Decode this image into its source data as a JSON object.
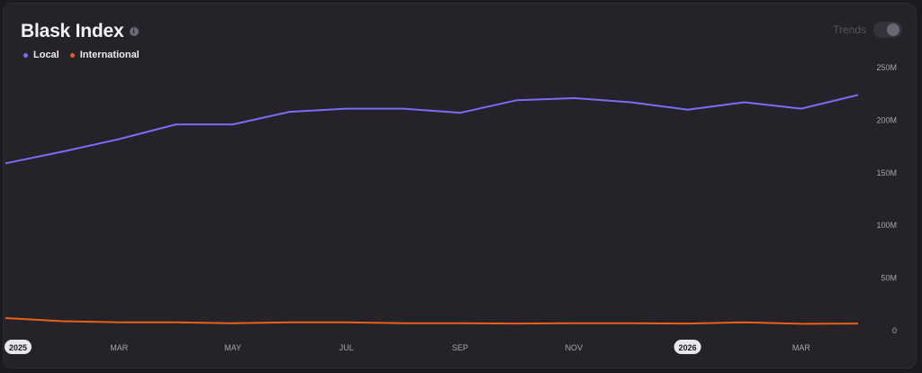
{
  "header": {
    "title": "Blask Index",
    "info_icon": "info-icon",
    "trends_label": "Trends",
    "trends_toggle_on": false
  },
  "legend": [
    {
      "label": "Local",
      "color": "#7b6cf6"
    },
    {
      "label": "International",
      "color": "#e8601a"
    }
  ],
  "chart_data": {
    "type": "line",
    "title": "Blask Index",
    "x": [
      "2025-01",
      "2025-02",
      "2025-03",
      "2025-04",
      "2025-05",
      "2025-06",
      "2025-07",
      "2025-08",
      "2025-09",
      "2025-10",
      "2025-11",
      "2025-12",
      "2026-01",
      "2026-02",
      "2026-03",
      "2026-04"
    ],
    "x_tick_labels": [
      {
        "x": "2025-01",
        "label": "2025",
        "highlight": true
      },
      {
        "x": "2025-03",
        "label": "MAR",
        "highlight": false
      },
      {
        "x": "2025-05",
        "label": "MAY",
        "highlight": false
      },
      {
        "x": "2025-07",
        "label": "JUL",
        "highlight": false
      },
      {
        "x": "2025-09",
        "label": "SEP",
        "highlight": false
      },
      {
        "x": "2025-11",
        "label": "NOV",
        "highlight": false
      },
      {
        "x": "2026-01",
        "label": "2026",
        "highlight": true
      },
      {
        "x": "2026-03",
        "label": "MAR",
        "highlight": false
      }
    ],
    "y_tick_labels": [
      {
        "value": 0,
        "label": "0"
      },
      {
        "value": 50000000,
        "label": "50M"
      },
      {
        "value": 100000000,
        "label": "100M"
      },
      {
        "value": 150000000,
        "label": "150M"
      },
      {
        "value": 200000000,
        "label": "200M"
      },
      {
        "value": 250000000,
        "label": "250M"
      }
    ],
    "ylim": [
      0,
      250000000
    ],
    "y_axis_position": "right",
    "grid": false,
    "legend_position": "top-left",
    "series": [
      {
        "name": "Local",
        "color": "#7b6cf6",
        "values": [
          159000000,
          170000000,
          182000000,
          196000000,
          196000000,
          208000000,
          211000000,
          211000000,
          207000000,
          219000000,
          221000000,
          217000000,
          210000000,
          217000000,
          211000000,
          224000000
        ]
      },
      {
        "name": "International",
        "color": "#e8601a",
        "values": [
          12000000,
          9000000,
          8000000,
          8000000,
          7000000,
          8000000,
          8000000,
          7000000,
          7000000,
          6800000,
          7000000,
          7000000,
          6800000,
          8000000,
          6500000,
          6800000
        ]
      }
    ]
  }
}
